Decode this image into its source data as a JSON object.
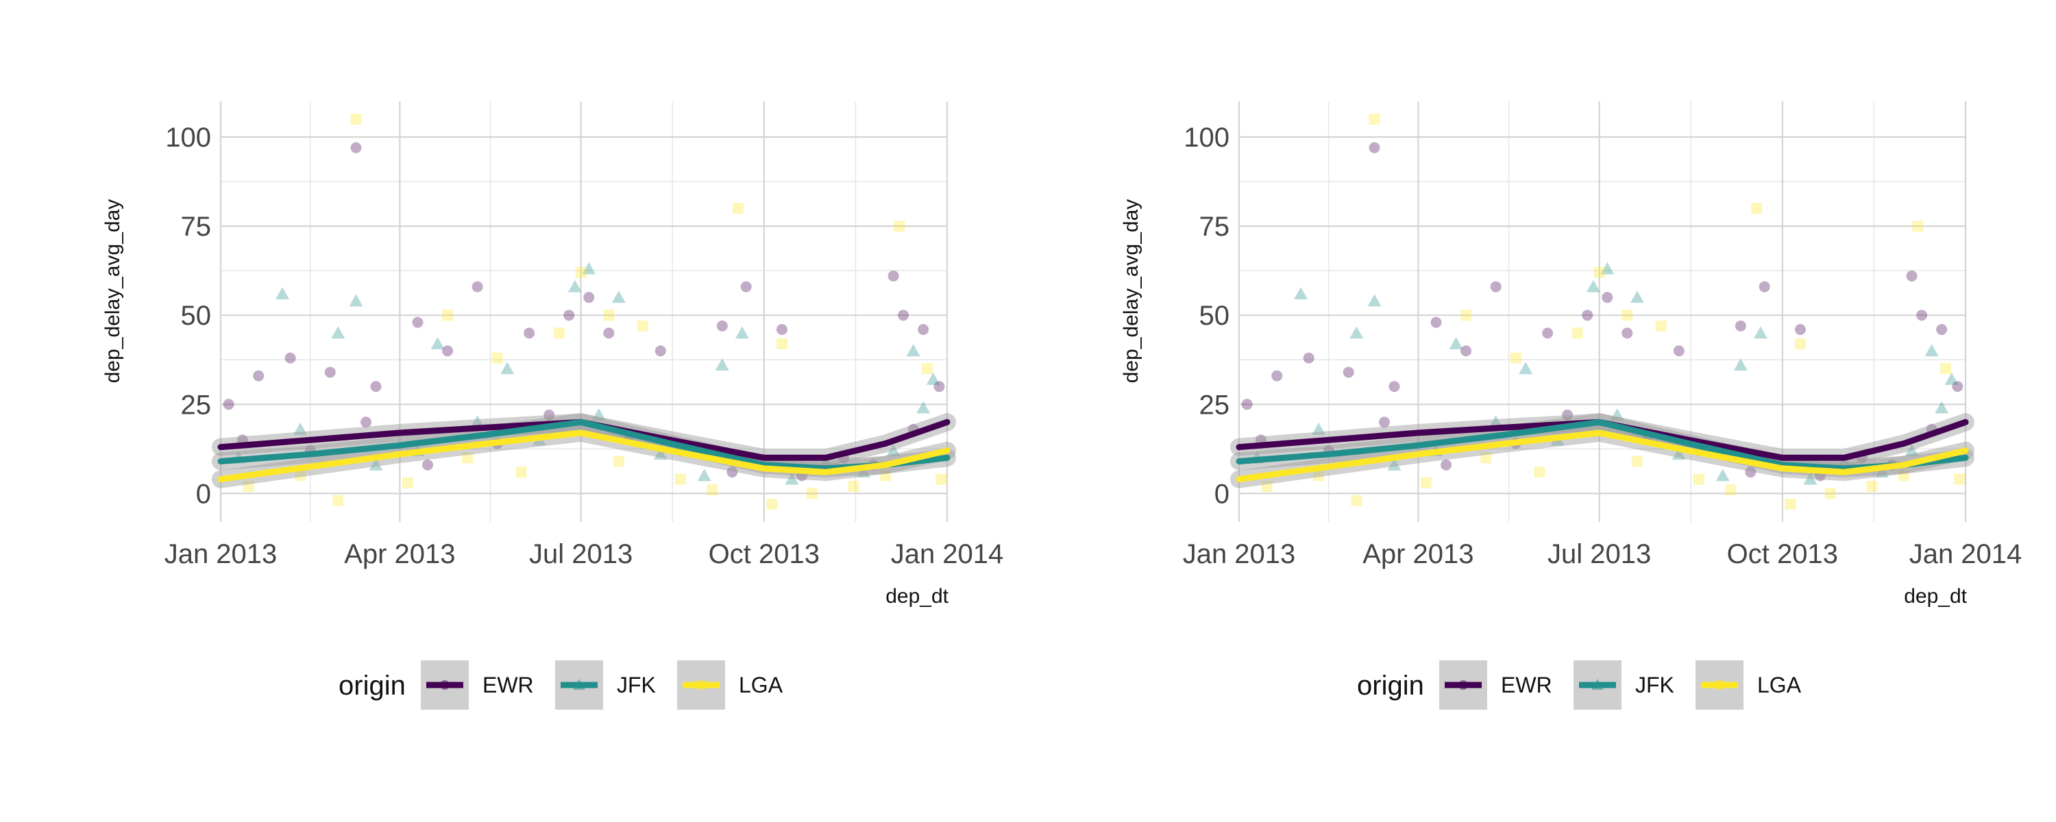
{
  "chart_data": [
    {
      "type": "scatter",
      "title": "",
      "xlabel": "dep_dt",
      "ylabel": "dep_delay_avg_day",
      "xlim": [
        "2013-01-01",
        "2014-01-01"
      ],
      "ylim": [
        -8,
        110
      ],
      "x_ticks": [
        "2013-01-01",
        "2013-04-01",
        "2013-07-01",
        "2013-10-01",
        "2014-01-01"
      ],
      "x_tick_labels": [
        "Jan 2013",
        "Apr 2013",
        "Jul 2013",
        "Oct 2013",
        "Jan 2014"
      ],
      "y_ticks": [
        0,
        25,
        50,
        75,
        100
      ],
      "y_tick_labels": [
        "0",
        "25",
        "50",
        "75",
        "100"
      ],
      "grid": true,
      "legend": {
        "title": "origin",
        "position": "bottom",
        "entries": [
          "EWR",
          "JFK",
          "LGA"
        ]
      },
      "series": [
        {
          "name": "EWR",
          "color": "#440154",
          "marker": "circle",
          "smooth": [
            [
              "2013-01-01",
              13
            ],
            [
              "2013-02-15",
              15
            ],
            [
              "2013-04-01",
              17
            ],
            [
              "2013-05-15",
              18.5
            ],
            [
              "2013-07-01",
              20
            ],
            [
              "2013-08-15",
              15
            ],
            [
              "2013-10-01",
              10
            ],
            [
              "2013-11-01",
              10
            ],
            [
              "2013-12-01",
              14
            ],
            [
              "2014-01-01",
              20
            ]
          ],
          "points": [
            [
              "2013-01-05",
              25
            ],
            [
              "2013-01-20",
              33
            ],
            [
              "2013-02-05",
              38
            ],
            [
              "2013-02-25",
              34
            ],
            [
              "2013-03-10",
              97
            ],
            [
              "2013-03-20",
              30
            ],
            [
              "2013-04-10",
              48
            ],
            [
              "2013-04-25",
              40
            ],
            [
              "2013-05-10",
              58
            ],
            [
              "2013-06-05",
              45
            ],
            [
              "2013-06-25",
              50
            ],
            [
              "2013-07-05",
              55
            ],
            [
              "2013-07-15",
              45
            ],
            [
              "2013-08-10",
              40
            ],
            [
              "2013-09-10",
              47
            ],
            [
              "2013-09-22",
              58
            ],
            [
              "2013-10-10",
              46
            ],
            [
              "2013-12-05",
              61
            ],
            [
              "2013-12-10",
              50
            ],
            [
              "2013-12-20",
              46
            ],
            [
              "2013-12-28",
              30
            ],
            [
              "2013-01-12",
              15
            ],
            [
              "2013-02-15",
              12
            ],
            [
              "2013-03-15",
              20
            ],
            [
              "2013-04-15",
              8
            ],
            [
              "2013-05-20",
              14
            ],
            [
              "2013-06-15",
              22
            ],
            [
              "2013-07-25",
              15
            ],
            [
              "2013-08-20",
              12
            ],
            [
              "2013-09-15",
              6
            ],
            [
              "2013-10-20",
              5
            ],
            [
              "2013-11-10",
              10
            ],
            [
              "2013-11-25",
              8
            ],
            [
              "2013-12-15",
              18
            ]
          ]
        },
        {
          "name": "JFK",
          "color": "#21908C",
          "marker": "triangle",
          "smooth": [
            [
              "2013-01-01",
              9
            ],
            [
              "2013-02-15",
              11
            ],
            [
              "2013-04-01",
              13.5
            ],
            [
              "2013-05-15",
              16.5
            ],
            [
              "2013-07-01",
              20
            ],
            [
              "2013-08-15",
              14
            ],
            [
              "2013-10-01",
              8
            ],
            [
              "2013-11-01",
              7
            ],
            [
              "2013-12-01",
              8
            ],
            [
              "2014-01-01",
              10
            ]
          ],
          "points": [
            [
              "2013-02-01",
              56
            ],
            [
              "2013-03-01",
              45
            ],
            [
              "2013-03-10",
              54
            ],
            [
              "2013-04-20",
              42
            ],
            [
              "2013-05-25",
              35
            ],
            [
              "2013-06-28",
              58
            ],
            [
              "2013-07-05",
              63
            ],
            [
              "2013-07-20",
              55
            ],
            [
              "2013-09-10",
              36
            ],
            [
              "2013-09-20",
              45
            ],
            [
              "2013-12-15",
              40
            ],
            [
              "2013-12-25",
              32
            ],
            [
              "2013-01-10",
              10
            ],
            [
              "2013-02-10",
              18
            ],
            [
              "2013-03-20",
              8
            ],
            [
              "2013-04-10",
              12
            ],
            [
              "2013-05-10",
              20
            ],
            [
              "2013-06-10",
              15
            ],
            [
              "2013-07-10",
              22
            ],
            [
              "2013-08-10",
              11
            ],
            [
              "2013-09-01",
              5
            ],
            [
              "2013-10-15",
              4
            ],
            [
              "2013-11-01",
              9
            ],
            [
              "2013-11-20",
              6
            ],
            [
              "2013-12-05",
              12
            ],
            [
              "2013-12-20",
              24
            ]
          ]
        },
        {
          "name": "LGA",
          "color": "#FDE725",
          "marker": "square",
          "smooth": [
            [
              "2013-01-01",
              4
            ],
            [
              "2013-02-15",
              7.5
            ],
            [
              "2013-04-01",
              11
            ],
            [
              "2013-05-15",
              14
            ],
            [
              "2013-07-01",
              17
            ],
            [
              "2013-08-15",
              12
            ],
            [
              "2013-10-01",
              7
            ],
            [
              "2013-11-01",
              6
            ],
            [
              "2013-12-01",
              8
            ],
            [
              "2014-01-01",
              12
            ]
          ],
          "points": [
            [
              "2013-03-10",
              105
            ],
            [
              "2013-04-25",
              50
            ],
            [
              "2013-05-20",
              38
            ],
            [
              "2013-06-20",
              45
            ],
            [
              "2013-07-01",
              62
            ],
            [
              "2013-07-15",
              50
            ],
            [
              "2013-08-01",
              47
            ],
            [
              "2013-09-18",
              80
            ],
            [
              "2013-10-10",
              42
            ],
            [
              "2013-12-08",
              75
            ],
            [
              "2013-12-22",
              35
            ],
            [
              "2013-01-15",
              2
            ],
            [
              "2013-02-10",
              5
            ],
            [
              "2013-03-01",
              -2
            ],
            [
              "2013-04-05",
              3
            ],
            [
              "2013-05-05",
              10
            ],
            [
              "2013-06-01",
              6
            ],
            [
              "2013-07-20",
              9
            ],
            [
              "2013-08-20",
              4
            ],
            [
              "2013-09-05",
              1
            ],
            [
              "2013-10-05",
              -3
            ],
            [
              "2013-10-25",
              0
            ],
            [
              "2013-11-15",
              2
            ],
            [
              "2013-12-01",
              5
            ],
            [
              "2013-12-29",
              4
            ]
          ]
        }
      ]
    },
    {
      "type": "scatter",
      "title": "",
      "xlabel": "dep_dt",
      "ylabel": "dep_delay_avg_day",
      "xlim": [
        "2013-01-01",
        "2014-01-01"
      ],
      "ylim": [
        -8,
        110
      ],
      "x_ticks": [
        "2013-01-01",
        "2013-04-01",
        "2013-07-01",
        "2013-10-01",
        "2014-01-01"
      ],
      "x_tick_labels": [
        "Jan 2013",
        "Apr 2013",
        "Jul 2013",
        "Oct 2013",
        "Jan 2014"
      ],
      "y_ticks": [
        0,
        25,
        50,
        75,
        100
      ],
      "y_tick_labels": [
        "0",
        "25",
        "50",
        "75",
        "100"
      ],
      "grid": true,
      "legend": {
        "title": "origin",
        "position": "bottom",
        "entries": [
          "EWR",
          "JFK",
          "LGA"
        ]
      },
      "series": [
        {
          "name": "EWR",
          "color": "#440154",
          "marker": "circle",
          "smooth": [
            [
              "2013-01-01",
              13
            ],
            [
              "2013-02-15",
              15
            ],
            [
              "2013-04-01",
              17
            ],
            [
              "2013-05-15",
              18.5
            ],
            [
              "2013-07-01",
              20
            ],
            [
              "2013-08-15",
              15
            ],
            [
              "2013-10-01",
              10
            ],
            [
              "2013-11-01",
              10
            ],
            [
              "2013-12-01",
              14
            ],
            [
              "2014-01-01",
              20
            ]
          ],
          "points": [
            [
              "2013-01-05",
              25
            ],
            [
              "2013-01-20",
              33
            ],
            [
              "2013-02-05",
              38
            ],
            [
              "2013-02-25",
              34
            ],
            [
              "2013-03-10",
              97
            ],
            [
              "2013-03-20",
              30
            ],
            [
              "2013-04-10",
              48
            ],
            [
              "2013-04-25",
              40
            ],
            [
              "2013-05-10",
              58
            ],
            [
              "2013-06-05",
              45
            ],
            [
              "2013-06-25",
              50
            ],
            [
              "2013-07-05",
              55
            ],
            [
              "2013-07-15",
              45
            ],
            [
              "2013-08-10",
              40
            ],
            [
              "2013-09-10",
              47
            ],
            [
              "2013-09-22",
              58
            ],
            [
              "2013-10-10",
              46
            ],
            [
              "2013-12-05",
              61
            ],
            [
              "2013-12-10",
              50
            ],
            [
              "2013-12-20",
              46
            ],
            [
              "2013-12-28",
              30
            ],
            [
              "2013-01-12",
              15
            ],
            [
              "2013-02-15",
              12
            ],
            [
              "2013-03-15",
              20
            ],
            [
              "2013-04-15",
              8
            ],
            [
              "2013-05-20",
              14
            ],
            [
              "2013-06-15",
              22
            ],
            [
              "2013-07-25",
              15
            ],
            [
              "2013-08-20",
              12
            ],
            [
              "2013-09-15",
              6
            ],
            [
              "2013-10-20",
              5
            ],
            [
              "2013-11-10",
              10
            ],
            [
              "2013-11-25",
              8
            ],
            [
              "2013-12-15",
              18
            ]
          ]
        },
        {
          "name": "JFK",
          "color": "#21908C",
          "marker": "triangle",
          "smooth": [
            [
              "2013-01-01",
              9
            ],
            [
              "2013-02-15",
              11
            ],
            [
              "2013-04-01",
              13.5
            ],
            [
              "2013-05-15",
              16.5
            ],
            [
              "2013-07-01",
              20
            ],
            [
              "2013-08-15",
              14
            ],
            [
              "2013-10-01",
              8
            ],
            [
              "2013-11-01",
              7
            ],
            [
              "2013-12-01",
              8
            ],
            [
              "2014-01-01",
              10
            ]
          ],
          "points": [
            [
              "2013-02-01",
              56
            ],
            [
              "2013-03-01",
              45
            ],
            [
              "2013-03-10",
              54
            ],
            [
              "2013-04-20",
              42
            ],
            [
              "2013-05-25",
              35
            ],
            [
              "2013-06-28",
              58
            ],
            [
              "2013-07-05",
              63
            ],
            [
              "2013-07-20",
              55
            ],
            [
              "2013-09-10",
              36
            ],
            [
              "2013-09-20",
              45
            ],
            [
              "2013-12-15",
              40
            ],
            [
              "2013-12-25",
              32
            ],
            [
              "2013-01-10",
              10
            ],
            [
              "2013-02-10",
              18
            ],
            [
              "2013-03-20",
              8
            ],
            [
              "2013-04-10",
              12
            ],
            [
              "2013-05-10",
              20
            ],
            [
              "2013-06-10",
              15
            ],
            [
              "2013-07-10",
              22
            ],
            [
              "2013-08-10",
              11
            ],
            [
              "2013-09-01",
              5
            ],
            [
              "2013-10-15",
              4
            ],
            [
              "2013-11-01",
              9
            ],
            [
              "2013-11-20",
              6
            ],
            [
              "2013-12-05",
              12
            ],
            [
              "2013-12-20",
              24
            ]
          ]
        },
        {
          "name": "LGA",
          "color": "#FDE725",
          "marker": "square",
          "smooth": [
            [
              "2013-01-01",
              4
            ],
            [
              "2013-02-15",
              7.5
            ],
            [
              "2013-04-01",
              11
            ],
            [
              "2013-05-15",
              14
            ],
            [
              "2013-07-01",
              17
            ],
            [
              "2013-08-15",
              12
            ],
            [
              "2013-10-01",
              7
            ],
            [
              "2013-11-01",
              6
            ],
            [
              "2013-12-01",
              8
            ],
            [
              "2014-01-01",
              12
            ]
          ],
          "points": [
            [
              "2013-03-10",
              105
            ],
            [
              "2013-04-25",
              50
            ],
            [
              "2013-05-20",
              38
            ],
            [
              "2013-06-20",
              45
            ],
            [
              "2013-07-01",
              62
            ],
            [
              "2013-07-15",
              50
            ],
            [
              "2013-08-01",
              47
            ],
            [
              "2013-09-18",
              80
            ],
            [
              "2013-10-10",
              42
            ],
            [
              "2013-12-08",
              75
            ],
            [
              "2013-12-22",
              35
            ],
            [
              "2013-01-15",
              2
            ],
            [
              "2013-02-10",
              5
            ],
            [
              "2013-03-01",
              -2
            ],
            [
              "2013-04-05",
              3
            ],
            [
              "2013-05-05",
              10
            ],
            [
              "2013-06-01",
              6
            ],
            [
              "2013-07-20",
              9
            ],
            [
              "2013-08-20",
              4
            ],
            [
              "2013-09-05",
              1
            ],
            [
              "2013-10-05",
              -3
            ],
            [
              "2013-10-25",
              0
            ],
            [
              "2013-11-15",
              2
            ],
            [
              "2013-12-01",
              5
            ],
            [
              "2013-12-29",
              4
            ]
          ]
        }
      ]
    }
  ]
}
